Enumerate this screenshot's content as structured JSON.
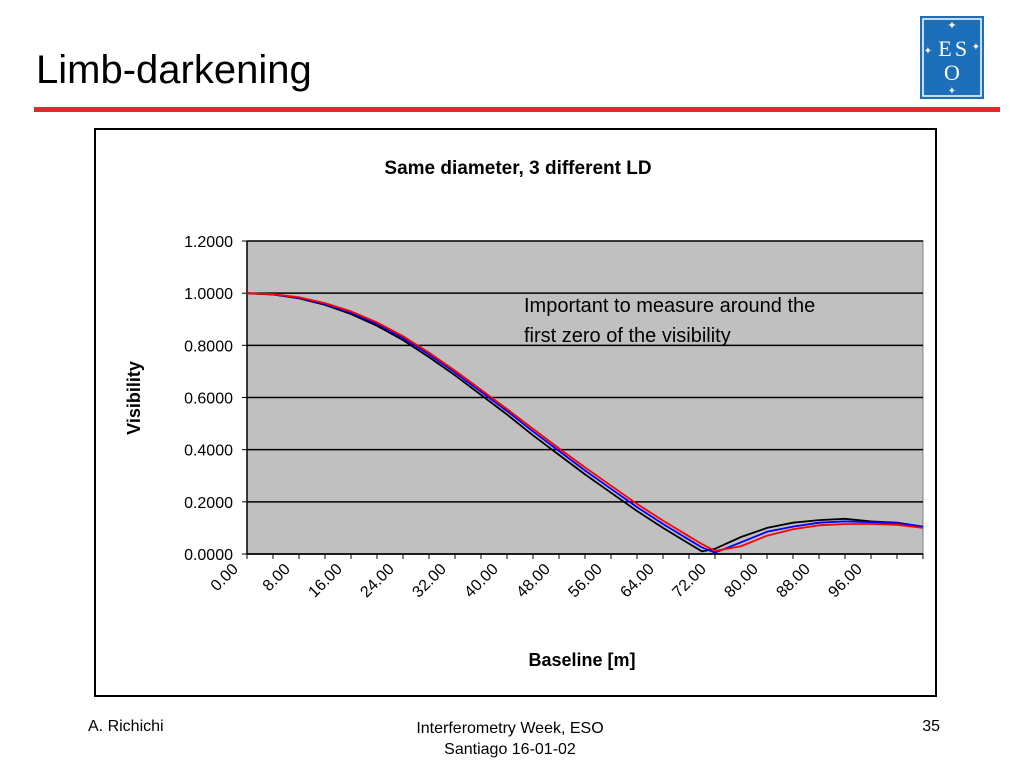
{
  "slide": {
    "title": "Limb-darkening",
    "logo_text": [
      "E",
      "S",
      "O"
    ]
  },
  "footer": {
    "author": "A. Richichi",
    "event_line1": "Interferometry Week,  ESO",
    "event_line2": "Santiago 16-01-02",
    "page": "35"
  },
  "colors": {
    "rule": "#e8262b",
    "logo_bg": "#1c6fb8",
    "plot_bg": "#c0c0c0"
  },
  "chart_data": {
    "type": "line",
    "title": "Same diameter, 3 different LD",
    "xlabel": "Baseline [m]",
    "ylabel": "Visibility",
    "xlim": [
      0,
      104
    ],
    "ylim": [
      0,
      1.2
    ],
    "y_ticks": [
      "0.0000",
      "0.2000",
      "0.4000",
      "0.6000",
      "0.8000",
      "1.0000",
      "1.2000"
    ],
    "x_ticks": [
      "0.00",
      "8.00",
      "16.00",
      "24.00",
      "32.00",
      "40.00",
      "48.00",
      "56.00",
      "64.00",
      "72.00",
      "80.00",
      "88.00",
      "96.00"
    ],
    "grid": "horizontal",
    "annotation": "Important to measure around the first zero of the visibility",
    "series": [
      {
        "color": "#000000",
        "x": [
          0,
          4,
          8,
          12,
          16,
          20,
          24,
          28,
          32,
          36,
          40,
          44,
          48,
          52,
          56,
          60,
          64,
          68,
          70,
          72,
          76,
          80,
          84,
          88,
          92,
          96,
          100,
          104
        ],
        "y": [
          1.0,
          0.995,
          0.98,
          0.955,
          0.92,
          0.875,
          0.82,
          0.755,
          0.685,
          0.61,
          0.535,
          0.455,
          0.38,
          0.305,
          0.235,
          0.165,
          0.1,
          0.04,
          0.01,
          0.02,
          0.065,
          0.1,
          0.12,
          0.13,
          0.135,
          0.125,
          0.12,
          0.105
        ]
      },
      {
        "color": "#0000ff",
        "x": [
          0,
          4,
          8,
          12,
          16,
          20,
          24,
          28,
          32,
          36,
          40,
          44,
          48,
          52,
          56,
          60,
          64,
          68,
          70,
          72,
          76,
          80,
          84,
          88,
          92,
          96,
          100,
          104
        ],
        "y": [
          1.0,
          0.995,
          0.982,
          0.958,
          0.925,
          0.882,
          0.828,
          0.765,
          0.695,
          0.622,
          0.548,
          0.47,
          0.395,
          0.32,
          0.25,
          0.18,
          0.115,
          0.055,
          0.025,
          0.005,
          0.045,
          0.085,
          0.105,
          0.12,
          0.125,
          0.122,
          0.118,
          0.105
        ]
      },
      {
        "color": "#ff0000",
        "x": [
          0,
          4,
          8,
          12,
          16,
          20,
          24,
          28,
          32,
          36,
          40,
          44,
          48,
          52,
          56,
          60,
          64,
          68,
          70,
          72,
          76,
          80,
          84,
          88,
          92,
          96,
          100,
          104
        ],
        "y": [
          1.0,
          0.996,
          0.984,
          0.962,
          0.93,
          0.888,
          0.835,
          0.772,
          0.703,
          0.63,
          0.556,
          0.48,
          0.405,
          0.332,
          0.262,
          0.192,
          0.128,
          0.068,
          0.038,
          0.012,
          0.03,
          0.07,
          0.095,
          0.11,
          0.115,
          0.115,
          0.112,
          0.1
        ]
      }
    ]
  }
}
